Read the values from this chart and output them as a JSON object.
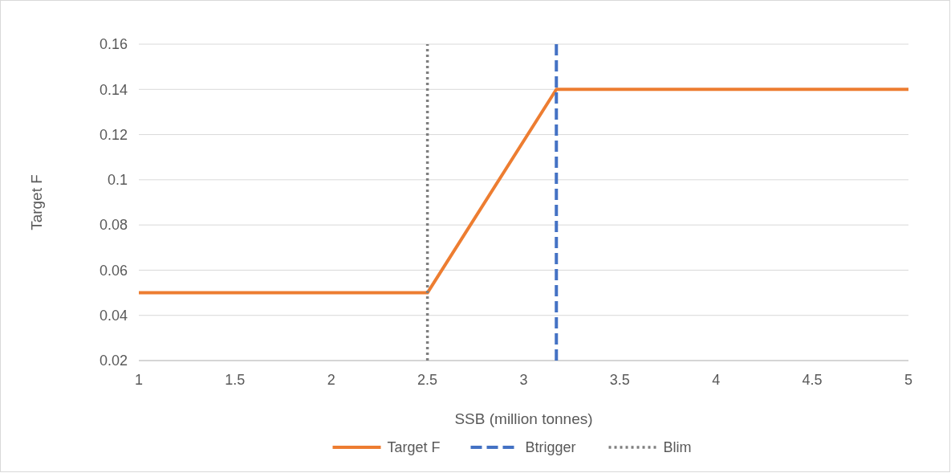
{
  "chart_data": {
    "type": "line",
    "xlabel": "SSB (million tonnes)",
    "ylabel": "Target F",
    "xlim": [
      1,
      5
    ],
    "xticks": [
      1,
      1.5,
      2,
      2.5,
      3,
      3.5,
      4,
      4.5,
      5
    ],
    "ylim": [
      0.02,
      0.16
    ],
    "yticks": [
      0.02,
      0.04,
      0.06,
      0.08,
      0.1,
      0.12,
      0.14,
      0.16
    ],
    "grid": "y",
    "legend": "bottom",
    "series": [
      {
        "name": "Target F",
        "color": "#ed7d31",
        "x": [
          1,
          2.5,
          3.17,
          5
        ],
        "values": [
          0.05,
          0.05,
          0.14,
          0.14
        ],
        "line_style": "solid"
      },
      {
        "name": "Btrigger",
        "color": "#4472c4",
        "x": [
          3.17,
          3.17
        ],
        "values": [
          0.02,
          0.16
        ],
        "line_style": "dashed"
      },
      {
        "name": "Blim",
        "color": "#7f7f7f",
        "x": [
          2.5,
          2.5
        ],
        "values": [
          0.02,
          0.16
        ],
        "line_style": "dotted"
      }
    ]
  }
}
